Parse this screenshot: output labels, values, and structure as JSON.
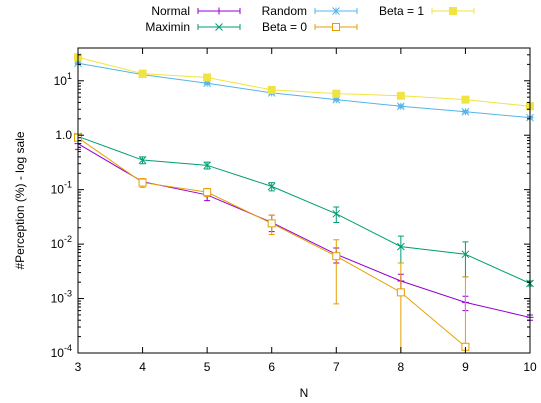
{
  "chart_data": {
    "type": "line",
    "xlabel": "N",
    "ylabel": "#Perception (%) - log sale",
    "xlim": [
      3,
      10
    ],
    "ylim": [
      0.0001,
      40
    ],
    "yscale": "log",
    "x_ticks": [
      "3",
      "4",
      "5",
      "6",
      "7",
      "8",
      "9",
      "10"
    ],
    "y_ticks": [
      {
        "value": 10,
        "mantissa": "10",
        "exp": "1"
      },
      {
        "value": 1,
        "mantissa": "10",
        "exp": "0",
        "label": "1.0"
      },
      {
        "value": 0.1,
        "mantissa": "10",
        "exp": "-1"
      },
      {
        "value": 0.01,
        "mantissa": "10",
        "exp": "-2"
      },
      {
        "value": 0.001,
        "mantissa": "10",
        "exp": "-3"
      },
      {
        "value": 0.0001,
        "mantissa": "10",
        "exp": "-4"
      }
    ],
    "grid": false,
    "legend_position": "top",
    "series": [
      {
        "name": "Normal",
        "color": "#9400d3",
        "marker": "plus",
        "x": [
          3,
          4,
          5,
          6,
          7,
          8,
          9,
          10
        ],
        "y": [
          0.7,
          0.14,
          0.08,
          0.025,
          0.0065,
          0.0021,
          0.00085,
          0.00045
        ],
        "err_low": [
          0.55,
          0.12,
          0.063,
          0.017,
          0.0045,
          0.0015,
          0.0006,
          0.0004
        ],
        "err_high": [
          0.85,
          0.16,
          0.095,
          0.034,
          0.0085,
          0.0028,
          0.0011,
          0.0005
        ]
      },
      {
        "name": "Maximin",
        "color": "#009e73",
        "marker": "cross",
        "x": [
          3,
          4,
          5,
          6,
          7,
          8,
          9,
          10
        ],
        "y": [
          0.95,
          0.35,
          0.28,
          0.115,
          0.036,
          0.009,
          0.0065,
          0.0019
        ],
        "err_low": [
          0.85,
          0.3,
          0.24,
          0.095,
          0.025,
          0.0045,
          0.0025,
          0.0017
        ],
        "err_high": [
          1.05,
          0.4,
          0.32,
          0.135,
          0.048,
          0.014,
          0.011,
          0.0021
        ]
      },
      {
        "name": "Random",
        "color": "#56b4e9",
        "marker": "star",
        "x": [
          3,
          4,
          5,
          6,
          7,
          8,
          9,
          10
        ],
        "y": [
          21,
          13,
          9,
          6,
          4.5,
          3.4,
          2.7,
          2.1
        ],
        "err_low": [
          20,
          12.5,
          8.6,
          5.7,
          4.3,
          3.2,
          2.55,
          2.0
        ],
        "err_high": [
          22,
          13.5,
          9.4,
          6.3,
          4.7,
          3.6,
          2.85,
          2.2
        ]
      },
      {
        "name": "Beta = 0",
        "color": "#e69f00",
        "marker": "square-open",
        "x": [
          3,
          4,
          5,
          6,
          7,
          8,
          9
        ],
        "y": [
          0.9,
          0.135,
          0.09,
          0.024,
          0.006,
          0.0013,
          0.00013
        ],
        "err_low": [
          0.8,
          0.11,
          0.075,
          0.015,
          0.0008,
          0.0001,
          0.0001
        ],
        "err_high": [
          1.0,
          0.16,
          0.105,
          0.034,
          0.012,
          0.0045,
          0.0025
        ]
      },
      {
        "name": "Beta = 1",
        "color": "#f0e442",
        "marker": "square-filled",
        "x": [
          3,
          4,
          5,
          6,
          7,
          8,
          9,
          10
        ],
        "y": [
          27,
          13.5,
          11.5,
          6.8,
          5.8,
          5.3,
          4.5,
          3.4
        ],
        "err_low": [
          26,
          13,
          11,
          6.5,
          5.6,
          5.1,
          4.3,
          3.2
        ],
        "err_high": [
          28,
          14,
          12,
          7.1,
          6.0,
          5.5,
          4.7,
          3.6
        ]
      }
    ]
  }
}
